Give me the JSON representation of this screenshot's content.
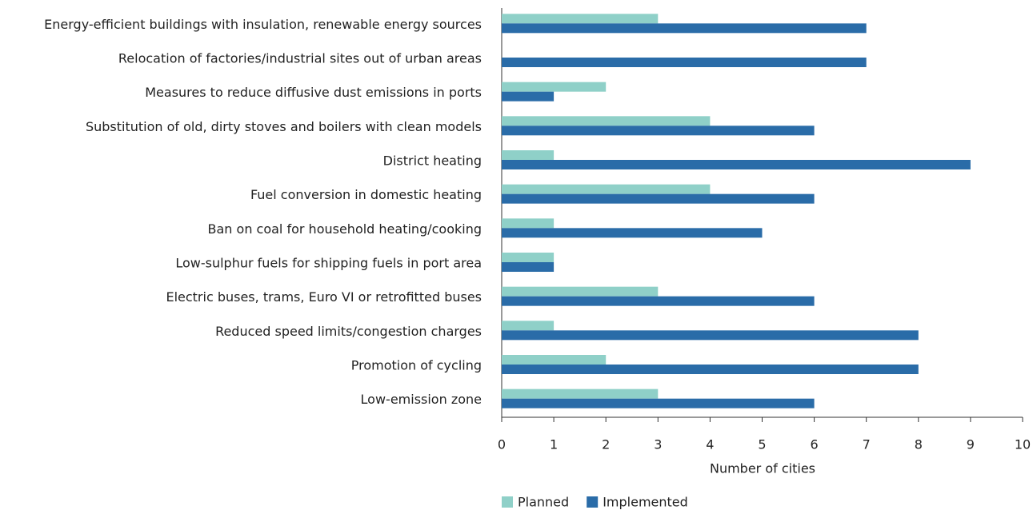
{
  "chart_data": {
    "type": "hbar",
    "categories": [
      "Energy-efficient buildings with insulation, renewable energy sources",
      "Relocation of factories/industrial sites out of urban areas",
      "Measures to reduce diffusive dust emissions in ports",
      "Substitution of old, dirty stoves and boilers with clean models",
      "District heating",
      "Fuel conversion in domestic heating",
      "Ban on coal for household heating/cooking",
      "Low-sulphur fuels for shipping fuels in port area",
      "Electric buses, trams, Euro VI or retrofitted buses",
      "Reduced speed limits/congestion charges",
      "Promotion of cycling",
      "Low-emission zone"
    ],
    "series": [
      {
        "name": "Planned",
        "color": "#8fd0c8",
        "values": [
          3,
          0,
          2,
          4,
          1,
          4,
          1,
          1,
          3,
          1,
          2,
          3
        ]
      },
      {
        "name": "Implemented",
        "color": "#2a6ca8",
        "values": [
          7,
          7,
          1,
          6,
          9,
          6,
          5,
          1,
          6,
          8,
          8,
          6
        ]
      }
    ],
    "xlabel": "Number of cities",
    "xlim": [
      0,
      10
    ],
    "xticks": [
      0,
      1,
      2,
      3,
      4,
      5,
      6,
      7,
      8,
      9,
      10
    ],
    "legend": "bottom"
  }
}
